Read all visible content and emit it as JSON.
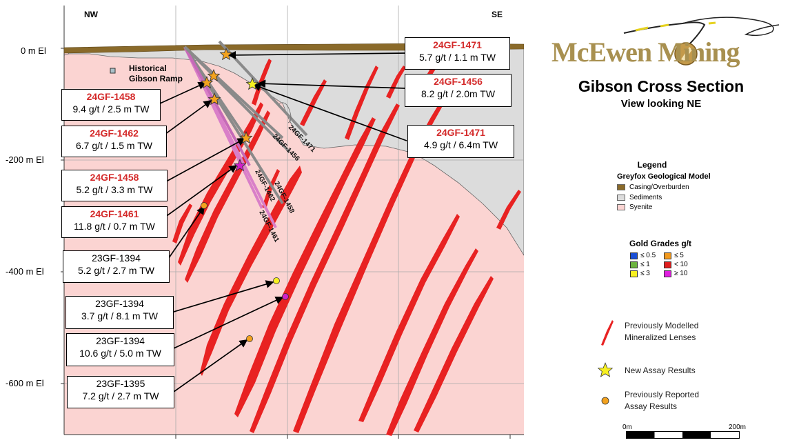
{
  "section": {
    "dir_left": "NW",
    "dir_right": "SE",
    "elevations": [
      "0 m El",
      "-200 m El",
      "-400 m El",
      "-600 m El"
    ],
    "historical_label_1": "Historical",
    "historical_label_2": "Gibson Ramp",
    "holes": [
      "24GF-1471",
      "24GF-1456",
      "24GF-1458",
      "24GF-1462",
      "24GF-1461"
    ]
  },
  "callouts": [
    {
      "hole": "24GF-1471",
      "grade": "5.7 g/t / 1.1 m TW",
      "new": true
    },
    {
      "hole": "24GF-1456",
      "grade": "8.2 g/t / 2.0m TW",
      "new": true
    },
    {
      "hole": "24GF-1458",
      "grade": "9.4 g/t / 2.5 m TW",
      "new": true
    },
    {
      "hole": "24GF-1471",
      "grade": "4.9 g/t / 6.4m TW",
      "new": true
    },
    {
      "hole": "24GF-1462",
      "grade": "6.7 g/t / 1.5 m TW",
      "new": true
    },
    {
      "hole": "24GF-1458",
      "grade": "5.2 g/t / 3.3 m TW",
      "new": true
    },
    {
      "hole": "24GF-1461",
      "grade": "11.8 g/t / 0.7 m TW",
      "new": true
    },
    {
      "hole": "23GF-1394",
      "grade": "5.2 g/t / 2.7 m TW",
      "new": false
    },
    {
      "hole": "23GF-1394",
      "grade": "3.7 g/t / 8.1 m TW",
      "new": false
    },
    {
      "hole": "23GF-1394",
      "grade": "10.6 g/t / 5.0 m TW",
      "new": false
    },
    {
      "hole": "23GF-1395",
      "grade": "7.2 g/t / 2.7 m TW",
      "new": false
    }
  ],
  "brand": {
    "name": "McEwen Mining"
  },
  "title": "Gibson Cross Section",
  "subtitle": "View looking NE",
  "legend": {
    "title": "Legend",
    "model_title": "Greyfox Geological Model",
    "units": [
      {
        "label": "Casing/Overburden",
        "color": "#8a6a2a"
      },
      {
        "label": "Sediments",
        "color": "#dcdcdc"
      },
      {
        "label": "Syenite",
        "color": "#fbd4d2"
      }
    ],
    "grades_title": "Gold Grades g/t",
    "grades": [
      {
        "label": "≤ 0.5",
        "color": "#1a4fd6"
      },
      {
        "label": "≤ 5",
        "color": "#f39a1e"
      },
      {
        "label": "≤ 1",
        "color": "#6cb33f"
      },
      {
        "label": "< 10",
        "color": "#e01e1e"
      },
      {
        "label": "≤ 3",
        "color": "#f7f021"
      },
      {
        "label": "≥ 10",
        "color": "#e01ee0"
      }
    ],
    "symbols": [
      {
        "label_1": "Previously Modelled",
        "label_2": "Mineralized Lenses",
        "icon": "red-lens"
      },
      {
        "label_1": "New Assay Results",
        "label_2": "",
        "icon": "yellow-star"
      },
      {
        "label_1": "Previously Reported",
        "label_2": "Assay Results",
        "icon": "orange-dot"
      }
    ]
  },
  "scale": {
    "start": "0m",
    "end": "200m"
  }
}
